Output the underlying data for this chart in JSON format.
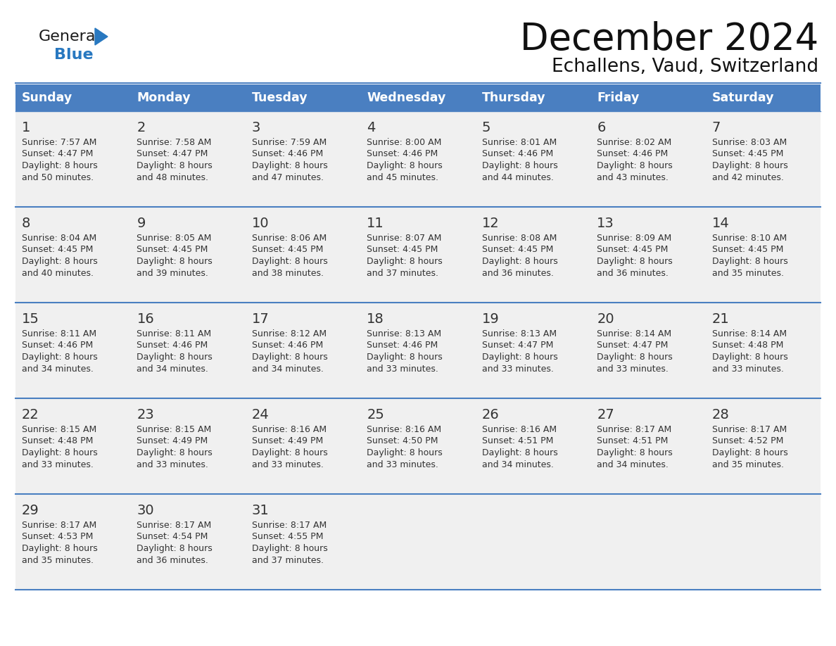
{
  "title": "December 2024",
  "subtitle": "Echallens, Vaud, Switzerland",
  "header_bg": "#4a7fc1",
  "header_text_color": "#FFFFFF",
  "day_names": [
    "Sunday",
    "Monday",
    "Tuesday",
    "Wednesday",
    "Thursday",
    "Friday",
    "Saturday"
  ],
  "row_bg": "#f0f0f0",
  "grid_line_color": "#4a7fc1",
  "text_color": "#333333",
  "days": [
    {
      "day": 1,
      "col": 0,
      "row": 0,
      "sunrise": "7:57 AM",
      "sunset": "4:47 PM",
      "daylight_h": "8 hours",
      "daylight_m": "50 minutes"
    },
    {
      "day": 2,
      "col": 1,
      "row": 0,
      "sunrise": "7:58 AM",
      "sunset": "4:47 PM",
      "daylight_h": "8 hours",
      "daylight_m": "48 minutes"
    },
    {
      "day": 3,
      "col": 2,
      "row": 0,
      "sunrise": "7:59 AM",
      "sunset": "4:46 PM",
      "daylight_h": "8 hours",
      "daylight_m": "47 minutes"
    },
    {
      "day": 4,
      "col": 3,
      "row": 0,
      "sunrise": "8:00 AM",
      "sunset": "4:46 PM",
      "daylight_h": "8 hours",
      "daylight_m": "45 minutes"
    },
    {
      "day": 5,
      "col": 4,
      "row": 0,
      "sunrise": "8:01 AM",
      "sunset": "4:46 PM",
      "daylight_h": "8 hours",
      "daylight_m": "44 minutes"
    },
    {
      "day": 6,
      "col": 5,
      "row": 0,
      "sunrise": "8:02 AM",
      "sunset": "4:46 PM",
      "daylight_h": "8 hours",
      "daylight_m": "43 minutes"
    },
    {
      "day": 7,
      "col": 6,
      "row": 0,
      "sunrise": "8:03 AM",
      "sunset": "4:45 PM",
      "daylight_h": "8 hours",
      "daylight_m": "42 minutes"
    },
    {
      "day": 8,
      "col": 0,
      "row": 1,
      "sunrise": "8:04 AM",
      "sunset": "4:45 PM",
      "daylight_h": "8 hours",
      "daylight_m": "40 minutes"
    },
    {
      "day": 9,
      "col": 1,
      "row": 1,
      "sunrise": "8:05 AM",
      "sunset": "4:45 PM",
      "daylight_h": "8 hours",
      "daylight_m": "39 minutes"
    },
    {
      "day": 10,
      "col": 2,
      "row": 1,
      "sunrise": "8:06 AM",
      "sunset": "4:45 PM",
      "daylight_h": "8 hours",
      "daylight_m": "38 minutes"
    },
    {
      "day": 11,
      "col": 3,
      "row": 1,
      "sunrise": "8:07 AM",
      "sunset": "4:45 PM",
      "daylight_h": "8 hours",
      "daylight_m": "37 minutes"
    },
    {
      "day": 12,
      "col": 4,
      "row": 1,
      "sunrise": "8:08 AM",
      "sunset": "4:45 PM",
      "daylight_h": "8 hours",
      "daylight_m": "36 minutes"
    },
    {
      "day": 13,
      "col": 5,
      "row": 1,
      "sunrise": "8:09 AM",
      "sunset": "4:45 PM",
      "daylight_h": "8 hours",
      "daylight_m": "36 minutes"
    },
    {
      "day": 14,
      "col": 6,
      "row": 1,
      "sunrise": "8:10 AM",
      "sunset": "4:45 PM",
      "daylight_h": "8 hours",
      "daylight_m": "35 minutes"
    },
    {
      "day": 15,
      "col": 0,
      "row": 2,
      "sunrise": "8:11 AM",
      "sunset": "4:46 PM",
      "daylight_h": "8 hours",
      "daylight_m": "34 minutes"
    },
    {
      "day": 16,
      "col": 1,
      "row": 2,
      "sunrise": "8:11 AM",
      "sunset": "4:46 PM",
      "daylight_h": "8 hours",
      "daylight_m": "34 minutes"
    },
    {
      "day": 17,
      "col": 2,
      "row": 2,
      "sunrise": "8:12 AM",
      "sunset": "4:46 PM",
      "daylight_h": "8 hours",
      "daylight_m": "34 minutes"
    },
    {
      "day": 18,
      "col": 3,
      "row": 2,
      "sunrise": "8:13 AM",
      "sunset": "4:46 PM",
      "daylight_h": "8 hours",
      "daylight_m": "33 minutes"
    },
    {
      "day": 19,
      "col": 4,
      "row": 2,
      "sunrise": "8:13 AM",
      "sunset": "4:47 PM",
      "daylight_h": "8 hours",
      "daylight_m": "33 minutes"
    },
    {
      "day": 20,
      "col": 5,
      "row": 2,
      "sunrise": "8:14 AM",
      "sunset": "4:47 PM",
      "daylight_h": "8 hours",
      "daylight_m": "33 minutes"
    },
    {
      "day": 21,
      "col": 6,
      "row": 2,
      "sunrise": "8:14 AM",
      "sunset": "4:48 PM",
      "daylight_h": "8 hours",
      "daylight_m": "33 minutes"
    },
    {
      "day": 22,
      "col": 0,
      "row": 3,
      "sunrise": "8:15 AM",
      "sunset": "4:48 PM",
      "daylight_h": "8 hours",
      "daylight_m": "33 minutes"
    },
    {
      "day": 23,
      "col": 1,
      "row": 3,
      "sunrise": "8:15 AM",
      "sunset": "4:49 PM",
      "daylight_h": "8 hours",
      "daylight_m": "33 minutes"
    },
    {
      "day": 24,
      "col": 2,
      "row": 3,
      "sunrise": "8:16 AM",
      "sunset": "4:49 PM",
      "daylight_h": "8 hours",
      "daylight_m": "33 minutes"
    },
    {
      "day": 25,
      "col": 3,
      "row": 3,
      "sunrise": "8:16 AM",
      "sunset": "4:50 PM",
      "daylight_h": "8 hours",
      "daylight_m": "33 minutes"
    },
    {
      "day": 26,
      "col": 4,
      "row": 3,
      "sunrise": "8:16 AM",
      "sunset": "4:51 PM",
      "daylight_h": "8 hours",
      "daylight_m": "34 minutes"
    },
    {
      "day": 27,
      "col": 5,
      "row": 3,
      "sunrise": "8:17 AM",
      "sunset": "4:51 PM",
      "daylight_h": "8 hours",
      "daylight_m": "34 minutes"
    },
    {
      "day": 28,
      "col": 6,
      "row": 3,
      "sunrise": "8:17 AM",
      "sunset": "4:52 PM",
      "daylight_h": "8 hours",
      "daylight_m": "35 minutes"
    },
    {
      "day": 29,
      "col": 0,
      "row": 4,
      "sunrise": "8:17 AM",
      "sunset": "4:53 PM",
      "daylight_h": "8 hours",
      "daylight_m": "35 minutes"
    },
    {
      "day": 30,
      "col": 1,
      "row": 4,
      "sunrise": "8:17 AM",
      "sunset": "4:54 PM",
      "daylight_h": "8 hours",
      "daylight_m": "36 minutes"
    },
    {
      "day": 31,
      "col": 2,
      "row": 4,
      "sunrise": "8:17 AM",
      "sunset": "4:55 PM",
      "daylight_h": "8 hours",
      "daylight_m": "37 minutes"
    }
  ]
}
